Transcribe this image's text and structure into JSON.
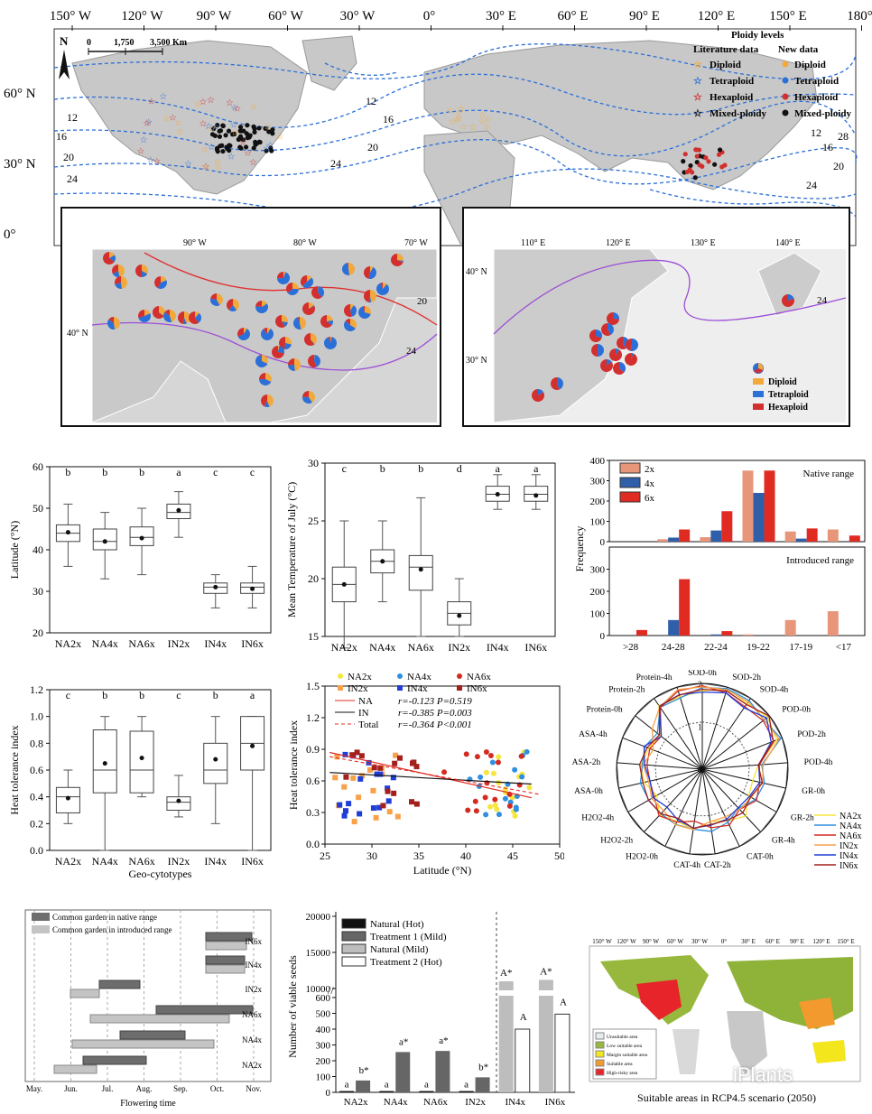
{
  "map": {
    "top_ticks": [
      "150° W",
      "120° W",
      "90° W",
      "60° W",
      "30° W",
      "0°",
      "30° E",
      "60° E",
      "90° E",
      "120° E",
      "150° E",
      "180°"
    ],
    "lat_ticks": [
      "60° N",
      "30° N",
      "0°"
    ],
    "scale": {
      "north": "N",
      "zero": "0",
      "mid": "1,750",
      "end": "3,500 Km"
    },
    "legend": {
      "title": "Ploidy levels",
      "col_a": "Literature data",
      "col_b": "New data",
      "rows": [
        "Diploid",
        "Tetraploid",
        "Hexaploid",
        "Mixed-ploidy"
      ]
    },
    "isotherm_labels": [
      "12",
      "16",
      "20",
      "24",
      "12",
      "16",
      "20",
      "24",
      "12",
      "16",
      "20",
      "24",
      "28"
    ],
    "inset_na": {
      "ticks_top": [
        "90° W",
        "80° W",
        "70° W"
      ],
      "lat": "40° N",
      "iso": [
        "20",
        "24"
      ]
    },
    "inset_asia": {
      "ticks_top": [
        "110° E",
        "120° E",
        "130° E",
        "140° E"
      ],
      "lat": [
        "40° N",
        "30° N"
      ],
      "iso": [
        "24"
      ],
      "legend": [
        "Diploid",
        "Tetraploid",
        "Hexaploid"
      ]
    }
  },
  "colors": {
    "diploid": "#f2a93b",
    "tetraploid": "#2b6fd8",
    "hexaploid": "#d32f2f",
    "mixed": "#111111",
    "iso": "#2b6fd8"
  },
  "chart_data": [
    {
      "id": "latitude_box",
      "type": "box",
      "title": "",
      "categories": [
        "NA2x",
        "NA4x",
        "NA6x",
        "IN2x",
        "IN4x",
        "IN6x"
      ],
      "ylabel": "Latitude (°N)",
      "ylim": [
        20,
        60
      ],
      "yticks": [
        "20",
        "30",
        "40",
        "50",
        "60"
      ],
      "letters": [
        "b",
        "b",
        "b",
        "a",
        "c",
        "c"
      ],
      "boxes": [
        {
          "min": 36,
          "q1": 42,
          "median": 44,
          "q3": 46,
          "max": 51,
          "mean": 44.2
        },
        {
          "min": 33,
          "q1": 40,
          "median": 42,
          "q3": 45,
          "max": 49,
          "mean": 42
        },
        {
          "min": 34,
          "q1": 41,
          "median": 43,
          "q3": 45.5,
          "max": 50,
          "mean": 42.8
        },
        {
          "min": 43,
          "q1": 47.5,
          "median": 49,
          "q3": 51,
          "max": 54,
          "mean": 49.5
        },
        {
          "min": 26,
          "q1": 29.5,
          "median": 31,
          "q3": 32,
          "max": 34,
          "mean": 31
        },
        {
          "min": 26,
          "q1": 29.5,
          "median": 31,
          "q3": 32,
          "max": 36,
          "mean": 30.6
        }
      ]
    },
    {
      "id": "july_temp_box",
      "type": "box",
      "categories": [
        "NA2x",
        "NA4x",
        "NA6x",
        "IN2x",
        "IN4x",
        "IN6x"
      ],
      "ylabel": "Mean Temperature of July (°C)",
      "ylim": [
        15,
        30
      ],
      "yticks": [
        "15",
        "20",
        "25",
        "30"
      ],
      "letters": [
        "c",
        "b",
        "b",
        "d",
        "a",
        "a"
      ],
      "boxes": [
        {
          "min": 14,
          "q1": 18,
          "median": 19.5,
          "q3": 21,
          "max": 25,
          "mean": 19.5
        },
        {
          "min": 18,
          "q1": 20.5,
          "median": 21.5,
          "q3": 22.5,
          "max": 25,
          "mean": 21.5
        },
        {
          "min": 15,
          "q1": 19,
          "median": 21,
          "q3": 22,
          "max": 27,
          "mean": 20.8
        },
        {
          "min": 15,
          "q1": 16,
          "median": 17,
          "q3": 18,
          "max": 20,
          "mean": 16.8
        },
        {
          "min": 26,
          "q1": 26.7,
          "median": 27.3,
          "q3": 28,
          "max": 29,
          "mean": 27.3
        },
        {
          "min": 26,
          "q1": 26.7,
          "median": 27.3,
          "q3": 28,
          "max": 29,
          "mean": 27.2
        }
      ]
    },
    {
      "id": "frequency_bars",
      "type": "bar",
      "categories": [
        ">28",
        "24-28",
        "22-24",
        "19-22",
        "17-19",
        "<17"
      ],
      "ylabel": "Frequency",
      "ylim": [
        0,
        400
      ],
      "yticks": [
        "0",
        "100",
        "200",
        "300",
        "400"
      ],
      "legend": [
        "2x",
        "4x",
        "6x"
      ],
      "native_label": "Native range",
      "introduced_label": "Introduced range",
      "series_native": [
        {
          "name": "2x",
          "values": [
            0,
            12,
            22,
            350,
            50,
            60
          ]
        },
        {
          "name": "4x",
          "values": [
            0,
            20,
            55,
            240,
            15,
            0
          ]
        },
        {
          "name": "6x",
          "values": [
            0,
            60,
            150,
            350,
            65,
            30
          ]
        }
      ],
      "series_introduced": [
        {
          "name": "2x",
          "values": [
            0,
            0,
            0,
            5,
            70,
            110
          ]
        },
        {
          "name": "4x",
          "values": [
            0,
            70,
            5,
            0,
            0,
            0
          ]
        },
        {
          "name": "6x",
          "values": [
            25,
            255,
            20,
            0,
            0,
            0
          ]
        }
      ]
    },
    {
      "id": "heat_tolerance_box",
      "type": "box",
      "categories": [
        "NA2x",
        "NA4x",
        "NA6x",
        "IN2x",
        "IN4x",
        "IN6x"
      ],
      "ylabel": "Heat tolerance index",
      "xlabel": "Geo-cytotypes",
      "ylim": [
        0,
        1.2
      ],
      "yticks": [
        "0.0",
        "0.2",
        "0.4",
        "0.6",
        "0.8",
        "1.0",
        "1.2"
      ],
      "letters": [
        "c",
        "b",
        "b",
        "c",
        "b",
        "a"
      ],
      "boxes": [
        {
          "min": 0.2,
          "q1": 0.28,
          "median": 0.4,
          "q3": 0.47,
          "max": 0.6,
          "mean": 0.39
        },
        {
          "min": 0.0,
          "q1": 0.43,
          "median": 0.6,
          "q3": 0.9,
          "max": 1.0,
          "mean": 0.65
        },
        {
          "min": 0.4,
          "q1": 0.43,
          "median": 0.6,
          "q3": 0.89,
          "max": 1.0,
          "mean": 0.69
        },
        {
          "min": 0.25,
          "q1": 0.3,
          "median": 0.36,
          "q3": 0.4,
          "max": 0.56,
          "mean": 0.37
        },
        {
          "min": 0.2,
          "q1": 0.5,
          "median": 0.6,
          "q3": 0.8,
          "max": 1.0,
          "mean": 0.68
        },
        {
          "min": 0.0,
          "q1": 0.6,
          "median": 0.8,
          "q3": 1.0,
          "max": 1.0,
          "mean": 0.78
        }
      ]
    },
    {
      "id": "heat_vs_latitude",
      "type": "scatter",
      "xlabel": "Latitude (°N)",
      "ylabel": "Heat tolerance index",
      "xlim": [
        25,
        50
      ],
      "ylim": [
        0,
        1.5
      ],
      "xticks": [
        "25",
        "30",
        "35",
        "40",
        "45",
        "50"
      ],
      "yticks": [
        "0.0",
        "0.3",
        "0.6",
        "0.9",
        "1.2",
        "1.5"
      ],
      "legend": [
        "NA2x",
        "NA4x",
        "NA6x",
        "IN2x",
        "IN4x",
        "IN6x"
      ],
      "stats": [
        {
          "name": "NA",
          "text": "r=-0.123  P=0.519"
        },
        {
          "name": "IN",
          "text": "r=-0.385  P=0.003"
        },
        {
          "name": "Total",
          "text": "r=-0.364  P<0.001"
        }
      ]
    },
    {
      "id": "enzyme_radar",
      "type": "radar",
      "axes": [
        "SOD-0h",
        "SOD-2h",
        "SOD-4h",
        "POD-0h",
        "POD-2h",
        "POD-4h",
        "GR-0h",
        "GR-2h",
        "GR-4h",
        "CAT-0h",
        "CAT-2h",
        "CAT-4h",
        "H2O2-0h",
        "H2O2-2h",
        "H2O2-4h",
        "ASA-0h",
        "ASA-2h",
        "ASA-4h",
        "Protein-0h",
        "Protein-2h",
        "Protein-4h"
      ],
      "rticks": [
        "0",
        "1",
        "2"
      ],
      "legend": [
        "NA2x",
        "NA4x",
        "NA6x",
        "IN2x",
        "IN4x",
        "IN6x"
      ]
    },
    {
      "id": "flowering_time",
      "type": "gantt",
      "legend": [
        "Common garden in native range",
        "Common garden in introduced range"
      ],
      "xticks": [
        "May.",
        "Jun.",
        "Jul.",
        "Aug.",
        "Sep.",
        "Oct.",
        "Nov."
      ],
      "xlabel": "Flowering time",
      "rows": [
        "IN6x",
        "IN4x",
        "IN2x",
        "NA6x",
        "NA4x",
        "NA2x"
      ]
    },
    {
      "id": "viable_seeds",
      "type": "bar",
      "categories": [
        "NA2x",
        "NA4x",
        "NA6x",
        "IN2x",
        "IN4x",
        "IN6x"
      ],
      "ylabel": "Number of viable seeds",
      "yticks_low": [
        "0",
        "100",
        "200",
        "300",
        "400",
        "500",
        "600"
      ],
      "yticks_high": [
        "10000",
        "15000",
        "20000"
      ],
      "legend": [
        "Natural (Hot)",
        "Treatment 1 (Mild)",
        "Natural (Mild)",
        "Treatment 2 (Hot)"
      ],
      "labels_left": [
        [
          "a",
          "b*"
        ],
        [
          "a",
          "a*"
        ],
        [
          "a",
          "a*"
        ],
        [
          "a",
          "b*"
        ]
      ],
      "labels_right": [
        [
          "A*",
          "A"
        ],
        [
          "A*",
          "A"
        ]
      ],
      "values_left": [
        [
          8,
          75
        ],
        [
          8,
          255
        ],
        [
          8,
          262
        ],
        [
          8,
          95
        ]
      ],
      "values_right": [
        [
          11000,
          400
        ],
        [
          11200,
          495
        ]
      ]
    }
  ],
  "suitability": {
    "ticks": [
      "150° W",
      "120° W",
      "90° W",
      "60° W",
      "30° W",
      "0°",
      "30° E",
      "60° E",
      "90° E",
      "120° E",
      "150° E"
    ],
    "legend": [
      "Unsuitable area",
      "Low suitable area",
      "Margin suitable area",
      "Suitable area",
      "High-risky area"
    ],
    "caption": "Suitable areas in RCP4.5 scenario (2050)"
  },
  "watermark": "iPlants"
}
